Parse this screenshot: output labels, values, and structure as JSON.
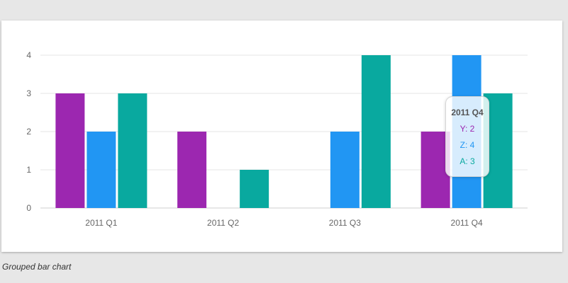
{
  "caption": "Grouped bar chart",
  "colors": {
    "Y": "#9c27b0",
    "Z": "#2196f3",
    "A": "#09a99f"
  },
  "chart_data": {
    "type": "bar",
    "categories": [
      "2011 Q1",
      "2011 Q2",
      "2011 Q3",
      "2011 Q4"
    ],
    "series": [
      {
        "name": "Y",
        "values": [
          3,
          2,
          0,
          2
        ]
      },
      {
        "name": "Z",
        "values": [
          2,
          0,
          2,
          4
        ]
      },
      {
        "name": "A",
        "values": [
          3,
          1,
          4,
          3
        ]
      }
    ],
    "ylim": [
      0,
      4
    ],
    "yticks": [
      "0",
      "1",
      "2",
      "3",
      "4"
    ],
    "grid": true,
    "title": "",
    "xlabel": "",
    "ylabel": ""
  },
  "tooltip": {
    "title": "2011 Q4",
    "rows": [
      {
        "series": "Y",
        "text": "Y: 2"
      },
      {
        "series": "Z",
        "text": "Z: 4"
      },
      {
        "series": "A",
        "text": "A: 3"
      }
    ]
  }
}
